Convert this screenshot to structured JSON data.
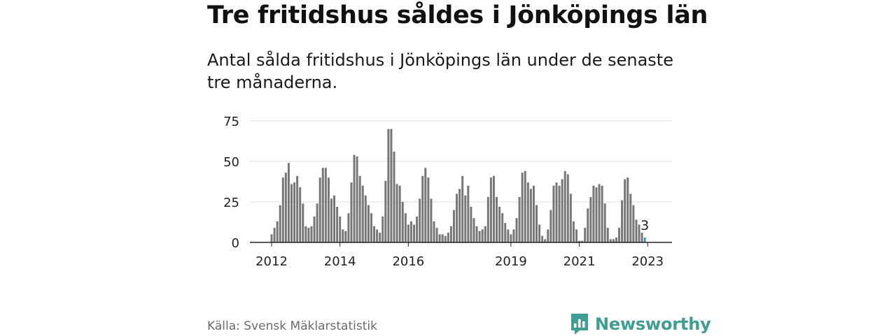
{
  "title": "Tre fritidshus såldes i Jönköpings län",
  "subtitle": "Antal sålda fritidshus i Jönköpings län under de senaste tre månaderna.",
  "source": "Källa: Svensk Mäklarstatistik",
  "brand": "Newsworthy",
  "colors": {
    "bar": "#777777",
    "highlight": "#3f9e94",
    "grid": "#dddddd",
    "axis": "#222222",
    "brand": "#3f9e94"
  },
  "chart_data": {
    "type": "bar",
    "title": "",
    "xlabel": "",
    "ylabel": "",
    "ylim": [
      0,
      75
    ],
    "yticks": [
      0,
      25,
      50,
      75
    ],
    "xtick_labels": [
      "2012",
      "2014",
      "2016",
      "2019",
      "2021",
      "2023"
    ],
    "x_start": "2012-01",
    "highlight_last": true,
    "last_value_label": "3",
    "values": [
      5,
      9,
      13,
      23,
      40,
      43,
      49,
      36,
      37,
      41,
      34,
      24,
      10,
      9,
      10,
      16,
      24,
      40,
      46,
      46,
      40,
      27,
      29,
      22,
      16,
      8,
      7,
      18,
      37,
      54,
      53,
      41,
      35,
      29,
      23,
      18,
      10,
      8,
      6,
      16,
      38,
      70,
      70,
      56,
      36,
      35,
      25,
      18,
      11,
      13,
      11,
      16,
      27,
      41,
      46,
      40,
      27,
      13,
      9,
      5,
      5,
      4,
      6,
      10,
      20,
      30,
      33,
      41,
      29,
      35,
      22,
      15,
      10,
      7,
      8,
      10,
      28,
      40,
      41,
      28,
      22,
      18,
      12,
      8,
      5,
      8,
      15,
      28,
      43,
      44,
      37,
      33,
      35,
      23,
      11,
      4,
      2,
      8,
      20,
      35,
      37,
      35,
      39,
      44,
      42,
      30,
      13,
      8,
      1,
      1,
      9,
      21,
      28,
      35,
      34,
      36,
      35,
      24,
      9,
      2,
      2,
      3,
      9,
      26,
      39,
      40,
      30,
      23,
      14,
      11,
      6,
      3
    ]
  }
}
